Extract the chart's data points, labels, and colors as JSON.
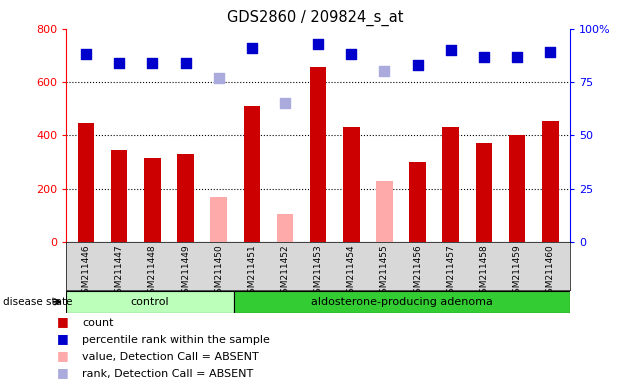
{
  "title": "GDS2860 / 209824_s_at",
  "samples": [
    "GSM211446",
    "GSM211447",
    "GSM211448",
    "GSM211449",
    "GSM211450",
    "GSM211451",
    "GSM211452",
    "GSM211453",
    "GSM211454",
    "GSM211455",
    "GSM211456",
    "GSM211457",
    "GSM211458",
    "GSM211459",
    "GSM211460"
  ],
  "count_values": [
    445,
    345,
    315,
    330,
    null,
    510,
    null,
    655,
    430,
    null,
    300,
    430,
    370,
    400,
    455
  ],
  "absent_value": [
    null,
    null,
    null,
    null,
    170,
    null,
    105,
    null,
    null,
    230,
    null,
    null,
    null,
    null,
    null
  ],
  "percentile_values": [
    88,
    84,
    84,
    84,
    null,
    91,
    null,
    93,
    88,
    null,
    83,
    90,
    87,
    87,
    89
  ],
  "absent_rank": [
    null,
    null,
    null,
    null,
    77,
    null,
    65,
    null,
    null,
    80,
    null,
    null,
    null,
    null,
    null
  ],
  "ylim_left": [
    0,
    800
  ],
  "ylim_right": [
    0,
    100
  ],
  "yticks_left": [
    0,
    200,
    400,
    600,
    800
  ],
  "yticks_right": [
    0,
    25,
    50,
    75,
    100
  ],
  "control_count": 5,
  "adenoma_count": 10,
  "bar_color_count": "#cc0000",
  "bar_color_absent": "#ffaaaa",
  "dot_color_percentile": "#0000cc",
  "dot_color_absent_rank": "#aaaadd",
  "bg_color_xticklabels": "#d8d8d8",
  "bg_control": "#bbffbb",
  "bg_adenoma": "#33cc33",
  "bar_width": 0.5,
  "dot_size": 55,
  "absent_dot_size": 45,
  "grid_values": [
    200,
    400,
    600
  ],
  "legend_items": [
    {
      "color": "#cc0000",
      "label": "count"
    },
    {
      "color": "#0000cc",
      "label": "percentile rank within the sample"
    },
    {
      "color": "#ffaaaa",
      "label": "value, Detection Call = ABSENT"
    },
    {
      "color": "#aaaadd",
      "label": "rank, Detection Call = ABSENT"
    }
  ]
}
